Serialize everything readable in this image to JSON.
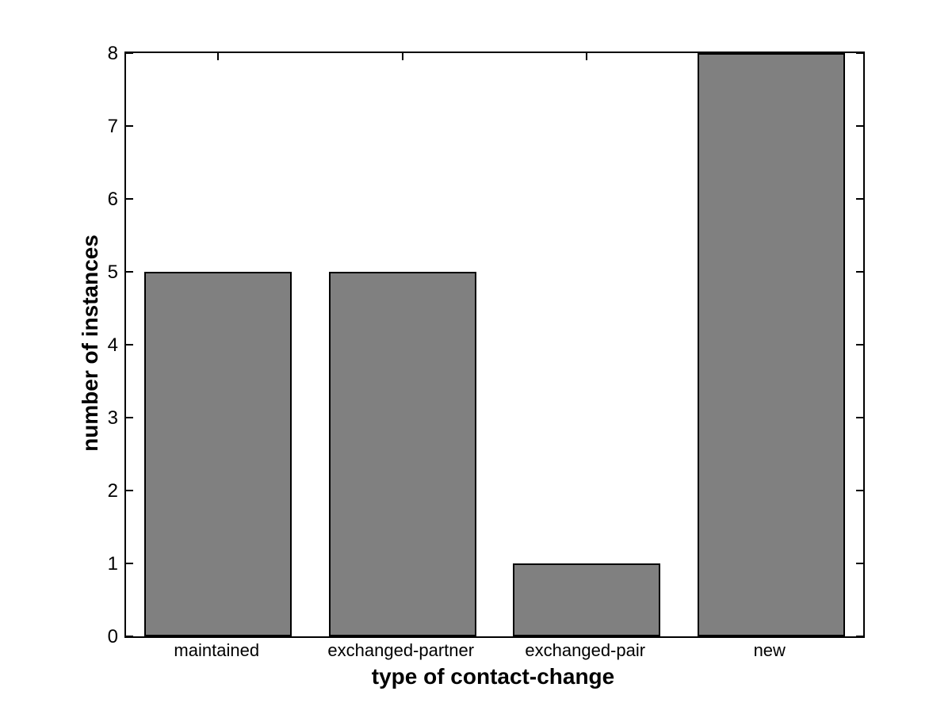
{
  "figure": {
    "background": "#ffffff"
  },
  "chart_data": {
    "type": "bar",
    "categories": [
      "maintained",
      "exchanged-partner",
      "exchanged-pair",
      "new"
    ],
    "values": [
      5,
      5,
      1,
      8
    ],
    "title": "",
    "xlabel": "type of contact-change",
    "ylabel": "number of instances",
    "ylim": [
      0,
      8
    ],
    "yticks": [
      0,
      1,
      2,
      3,
      4,
      5,
      6,
      7,
      8
    ],
    "bar_width_fraction": 0.8,
    "bar_color": "#808080",
    "bar_edge_color": "#000000",
    "axis_color": "#000000",
    "text_color": "#000000",
    "grid": false,
    "legend_position": "none",
    "tick_direction": "in",
    "box": true
  }
}
